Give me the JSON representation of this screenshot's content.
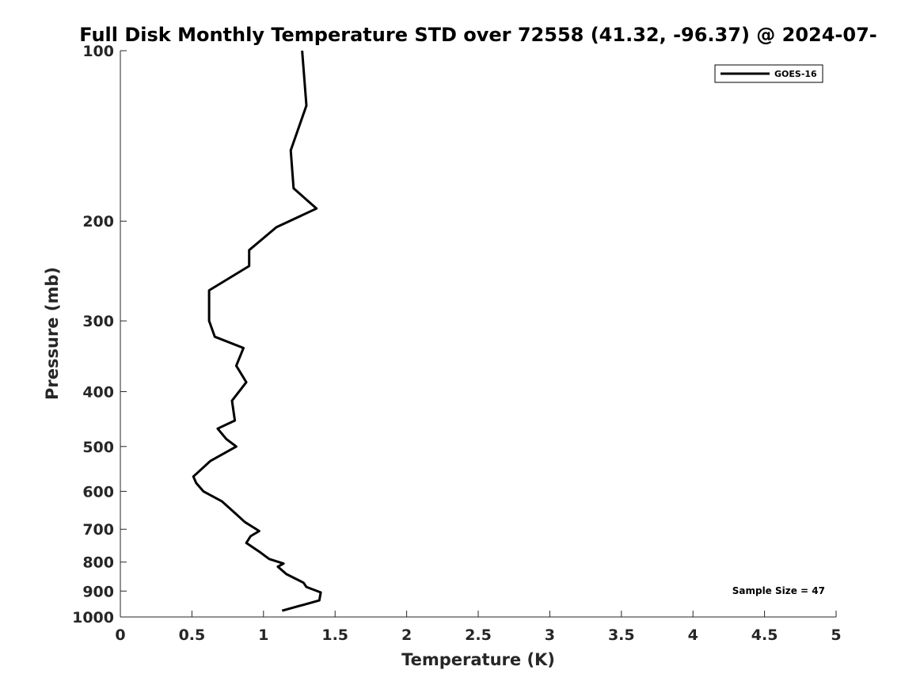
{
  "chart_data": {
    "type": "line",
    "title": "Full Disk Monthly Temperature STD over 72558 (41.32, -96.37) @ 2024-07-",
    "xlabel": "Temperature (K)",
    "ylabel": "Pressure (mb)",
    "xlim": [
      0,
      5
    ],
    "ylim": [
      1000,
      100
    ],
    "y_scale": "log",
    "y_reversed": true,
    "x_ticks": [
      0,
      0.5,
      1,
      1.5,
      2,
      2.5,
      3,
      3.5,
      4,
      4.5,
      5
    ],
    "x_tick_labels": [
      "0",
      "0.5",
      "1",
      "1.5",
      "2",
      "2.5",
      "3",
      "3.5",
      "4",
      "4.5",
      "5"
    ],
    "y_ticks": [
      100,
      200,
      300,
      400,
      500,
      600,
      700,
      800,
      900,
      1000
    ],
    "y_tick_labels": [
      "100",
      "200",
      "300",
      "400",
      "500",
      "600",
      "700",
      "800",
      "900",
      "1000"
    ],
    "grid": false,
    "legend_position": "top-right",
    "series": [
      {
        "name": "GOES-16",
        "color": "#000000",
        "points": [
          [
            1.27,
            100
          ],
          [
            1.3,
            125
          ],
          [
            1.19,
            150
          ],
          [
            1.21,
            175
          ],
          [
            1.37,
            190
          ],
          [
            1.09,
            205
          ],
          [
            0.9,
            225
          ],
          [
            0.9,
            240
          ],
          [
            0.62,
            265
          ],
          [
            0.62,
            280
          ],
          [
            0.62,
            300
          ],
          [
            0.66,
            320
          ],
          [
            0.86,
            335
          ],
          [
            0.81,
            360
          ],
          [
            0.88,
            385
          ],
          [
            0.78,
            415
          ],
          [
            0.8,
            450
          ],
          [
            0.68,
            465
          ],
          [
            0.74,
            485
          ],
          [
            0.81,
            500
          ],
          [
            0.63,
            530
          ],
          [
            0.51,
            565
          ],
          [
            0.53,
            580
          ],
          [
            0.58,
            600
          ],
          [
            0.71,
            625
          ],
          [
            0.8,
            655
          ],
          [
            0.87,
            680
          ],
          [
            0.97,
            705
          ],
          [
            0.91,
            720
          ],
          [
            0.88,
            740
          ],
          [
            0.98,
            770
          ],
          [
            1.04,
            790
          ],
          [
            1.14,
            805
          ],
          [
            1.1,
            815
          ],
          [
            1.16,
            840
          ],
          [
            1.28,
            870
          ],
          [
            1.3,
            885
          ],
          [
            1.4,
            905
          ],
          [
            1.39,
            935
          ],
          [
            1.13,
            975
          ]
        ]
      }
    ],
    "annotations": [
      {
        "text": "Sample Size = 47",
        "position": "bottom-right"
      }
    ]
  }
}
